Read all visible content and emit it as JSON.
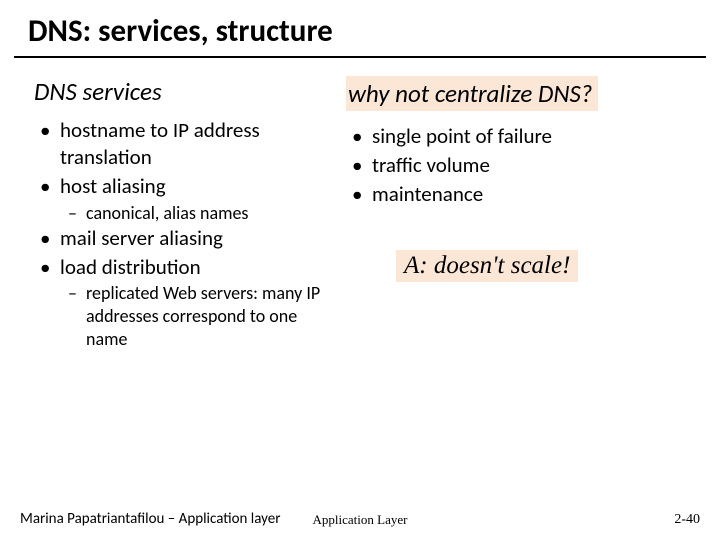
{
  "title": "DNS: services, structure",
  "left": {
    "heading": "DNS services",
    "bullets": [
      {
        "text": "hostname to IP address translation"
      },
      {
        "text": "host aliasing",
        "sub": "canonical, alias names"
      },
      {
        "text": "mail server aliasing"
      },
      {
        "text": "load distribution",
        "sub": "replicated Web servers: many IP addresses correspond to one name"
      }
    ]
  },
  "right": {
    "heading": "why not centralize DNS?",
    "bullets": [
      {
        "text": "single point of failure"
      },
      {
        "text": "traffic volume"
      },
      {
        "text": "maintenance"
      }
    ],
    "answer": "A: doesn't scale!"
  },
  "footer": {
    "left": "Marina Papatriantafilou – Application layer",
    "center": "Application Layer",
    "right": "2-40"
  },
  "style": {
    "highlight_bg": "#fce6d6",
    "text_color": "#000000",
    "background": "#ffffff"
  }
}
